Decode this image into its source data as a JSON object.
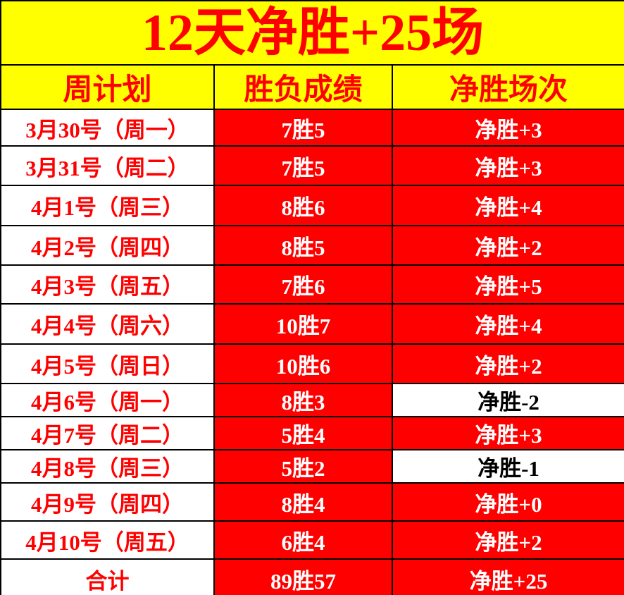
{
  "title": "12天净胜+25场",
  "columns": [
    "周计划",
    "胜负成绩",
    "净胜场次"
  ],
  "rows": [
    {
      "date": "3月30号（周一）",
      "score": "7胜5",
      "net": "净胜+3",
      "net_negative": false
    },
    {
      "date": "3月31号（周二）",
      "score": "7胜5",
      "net": "净胜+3",
      "net_negative": false
    },
    {
      "date": "4月1号（周三）",
      "score": "8胜6",
      "net": "净胜+4",
      "net_negative": false
    },
    {
      "date": "4月2号（周四）",
      "score": "8胜5",
      "net": "净胜+2",
      "net_negative": false
    },
    {
      "date": "4月3号（周五）",
      "score": "7胜6",
      "net": "净胜+5",
      "net_negative": false
    },
    {
      "date": "4月4号（周六）",
      "score": "10胜7",
      "net": "净胜+4",
      "net_negative": false
    },
    {
      "date": "4月5号（周日）",
      "score": "10胜6",
      "net": "净胜+2",
      "net_negative": false
    },
    {
      "date": "4月6号（周一）",
      "score": "8胜3",
      "net": "净胜-2",
      "net_negative": true
    },
    {
      "date": "4月7号（周二）",
      "score": "5胜4",
      "net": "净胜+3",
      "net_negative": false
    },
    {
      "date": "4月8号（周三）",
      "score": "5胜2",
      "net": "净胜-1",
      "net_negative": true
    },
    {
      "date": "4月9号（周四）",
      "score": "8胜4",
      "net": "净胜+0",
      "net_negative": false
    },
    {
      "date": "4月10号（周五）",
      "score": "6胜4",
      "net": "净胜+2",
      "net_negative": false
    }
  ],
  "total": {
    "label": "合计",
    "score": "89胜57",
    "net": "净胜+25",
    "net_negative": false
  },
  "colors": {
    "banner_bg": "#FFFF00",
    "accent_red_fill": "#FE0000",
    "accent_red_text": "#FF0000",
    "negative_cell_bg": "#FFFFFF",
    "negative_cell_text": "#000000",
    "border": "#000000"
  }
}
